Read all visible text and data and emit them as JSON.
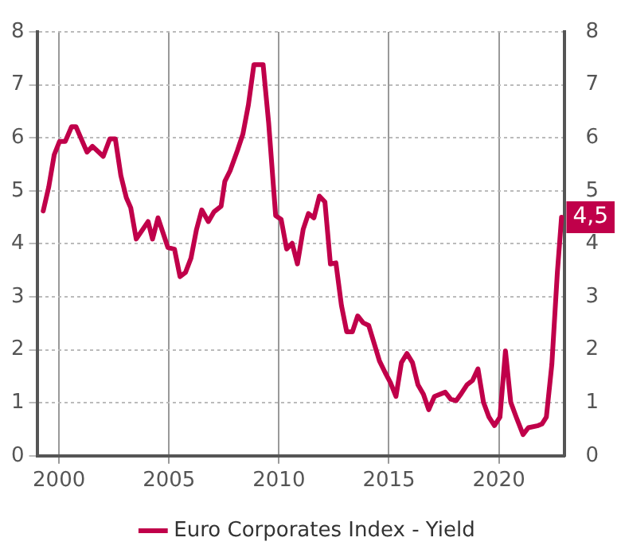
{
  "chart_data": {
    "type": "line",
    "xlim": [
      1999,
      2023
    ],
    "xticks": [
      2000,
      2005,
      2010,
      2015,
      2020
    ],
    "ylim": [
      0,
      8
    ],
    "yticks": [
      0,
      1,
      2,
      3,
      4,
      5,
      6,
      7,
      8
    ],
    "y2lim": [
      0,
      8
    ],
    "y2ticks": [
      0,
      1,
      2,
      3,
      4,
      5,
      6,
      7,
      8
    ],
    "grid": true,
    "legend": "bottom",
    "marker": "none",
    "line_style": "solid",
    "series": [
      {
        "name": "Euro Corporates Index - Yield",
        "color": "#c0004a",
        "x": [
          1999.28,
          1999.53,
          1999.78,
          2000.02,
          2000.28,
          2000.57,
          2000.77,
          2001.27,
          2001.52,
          2002.01,
          2002.31,
          2002.56,
          2002.81,
          2003.06,
          2003.26,
          2003.51,
          2004.05,
          2004.25,
          2004.5,
          2004.95,
          2005.25,
          2005.5,
          2005.75,
          2006.0,
          2006.25,
          2006.49,
          2006.79,
          2007.04,
          2007.37,
          2007.54,
          2007.78,
          2008.11,
          2008.36,
          2008.61,
          2008.86,
          2009.28,
          2009.53,
          2009.85,
          2010.1,
          2010.35,
          2010.6,
          2010.84,
          2011.1,
          2011.34,
          2011.59,
          2011.84,
          2012.09,
          2012.34,
          2012.59,
          2012.84,
          2013.08,
          2013.34,
          2013.58,
          2013.83,
          2014.08,
          2014.33,
          2014.57,
          2014.83,
          2015.07,
          2015.32,
          2015.57,
          2015.82,
          2016.07,
          2016.32,
          2016.57,
          2016.81,
          2017.07,
          2017.56,
          2017.81,
          2018.06,
          2018.3,
          2018.55,
          2018.8,
          2019.05,
          2019.3,
          2019.55,
          2019.8,
          2020.05,
          2020.3,
          2020.54,
          2020.79,
          2021.1,
          2021.34,
          2021.79,
          2021.96,
          2022.16,
          2022.41,
          2022.66,
          2022.85
        ],
        "values": [
          4.62,
          5.07,
          5.68,
          5.93,
          5.93,
          6.21,
          6.21,
          5.73,
          5.84,
          5.65,
          5.98,
          5.98,
          5.29,
          4.87,
          4.68,
          4.09,
          4.42,
          4.09,
          4.49,
          3.93,
          3.9,
          3.38,
          3.46,
          3.73,
          4.27,
          4.64,
          4.42,
          4.6,
          4.71,
          5.18,
          5.38,
          5.76,
          6.07,
          6.62,
          7.38,
          7.38,
          6.29,
          4.53,
          4.46,
          3.9,
          4.01,
          3.62,
          4.27,
          4.57,
          4.49,
          4.9,
          4.79,
          3.62,
          3.64,
          2.84,
          2.34,
          2.34,
          2.64,
          2.51,
          2.46,
          2.12,
          1.79,
          1.57,
          1.38,
          1.12,
          1.76,
          1.93,
          1.76,
          1.34,
          1.16,
          0.87,
          1.12,
          1.2,
          1.07,
          1.04,
          1.18,
          1.34,
          1.42,
          1.64,
          1.01,
          0.73,
          0.57,
          0.73,
          1.98,
          1.01,
          0.73,
          0.4,
          0.53,
          0.57,
          0.6,
          0.73,
          1.73,
          3.46,
          4.5
        ],
        "value_labels": [
          null,
          null,
          null,
          null,
          null,
          null,
          null,
          null,
          null,
          null,
          null,
          null,
          null,
          null,
          null,
          null,
          null,
          null,
          null,
          null,
          null,
          null,
          null,
          null,
          null,
          null,
          null,
          null,
          null,
          null,
          null,
          null,
          null,
          null,
          null,
          null,
          null,
          null,
          null,
          null,
          null,
          null,
          null,
          null,
          null,
          null,
          null,
          null,
          null,
          null,
          null,
          null,
          null,
          null,
          null,
          null,
          null,
          null,
          null,
          null,
          null,
          null,
          null,
          null,
          null,
          null,
          null,
          null,
          null,
          null,
          null,
          null,
          null,
          null,
          null,
          null,
          null,
          null,
          null,
          null,
          null,
          null,
          null,
          null,
          null,
          null,
          null,
          null,
          "4,5"
        ]
      }
    ]
  }
}
